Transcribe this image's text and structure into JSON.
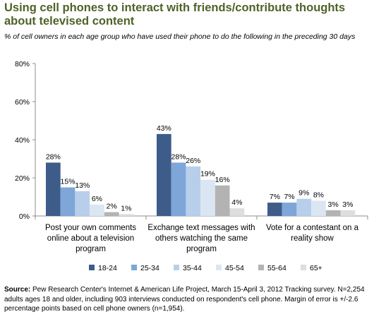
{
  "title": "Using cell phones to interact with friends/contribute thoughts about televised content",
  "subtitle": "% of cell owners in each age group who have used their phone to do the following in the preceding 30 days",
  "source_label": "Source:",
  "source_text": "Pew Research Center's Internet & American Life Project, March 15-April 3, 2012 Tracking survey. N=2,254 adults ages 18 and older, including 903 interviews conducted on respondent's cell phone. Margin of error is +/-2.6 percentage points based on cell phone owners (n=1,954).",
  "chart_data": {
    "type": "bar",
    "categories": [
      [
        "Post your own comments",
        "online about a television",
        "program"
      ],
      [
        "Exchange text messages with",
        "others watching the same",
        "program"
      ],
      [
        "Vote for a contestant on a",
        "reality show"
      ]
    ],
    "series": [
      {
        "name": "18-24",
        "color": "#3d5c8a",
        "values": [
          28,
          43,
          7
        ]
      },
      {
        "name": "25-34",
        "color": "#7ea6d9",
        "values": [
          15,
          28,
          7
        ]
      },
      {
        "name": "35-44",
        "color": "#b7cfea",
        "values": [
          13,
          26,
          9
        ]
      },
      {
        "name": "45-54",
        "color": "#dbe6f3",
        "values": [
          6,
          19,
          8
        ]
      },
      {
        "name": "55-64",
        "color": "#b3b3b3",
        "values": [
          2,
          16,
          3
        ]
      },
      {
        "name": "65+",
        "color": "#dedede",
        "values": [
          1,
          4,
          3
        ]
      }
    ],
    "data_labels": [
      [
        "28%",
        "43%",
        "7%"
      ],
      [
        "15%",
        "28%",
        "7%"
      ],
      [
        "13%",
        "26%",
        "9%"
      ],
      [
        "6%",
        "19%",
        "8%"
      ],
      [
        "2%",
        "16%",
        "3%"
      ],
      [
        "1%",
        "4%",
        "3%"
      ]
    ],
    "yticks": [
      0,
      20,
      40,
      60,
      80
    ],
    "ytick_labels": [
      "0%",
      "20%",
      "40%",
      "60%",
      "80%"
    ],
    "ylim": [
      0,
      80
    ],
    "grid": false,
    "legend_position": "bottom"
  }
}
